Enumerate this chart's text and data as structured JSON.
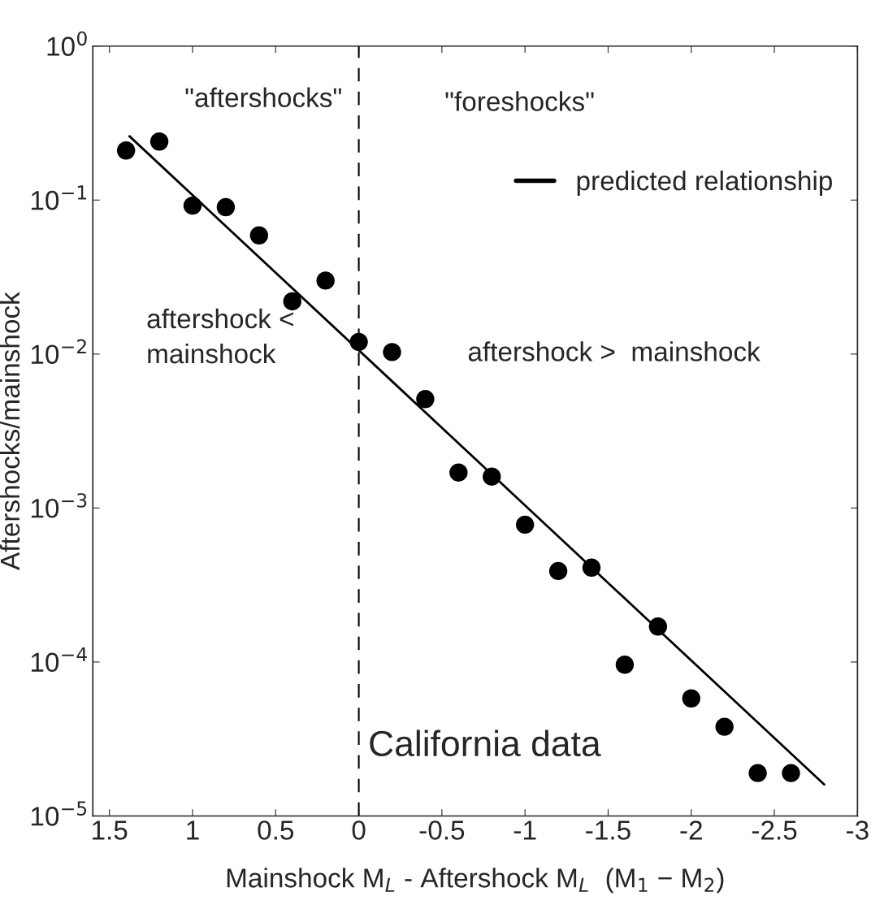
{
  "chart_data": {
    "type": "scatter",
    "xlabel": "Mainshock M$_{L}$ - Aftershock M$_{L}$  (M$_{1}$ − M$_{2}$)",
    "ylabel": "Aftershocks/mainshock",
    "x": [
      1.4,
      1.2,
      1.0,
      0.8,
      0.6,
      0.4,
      0.2,
      0.0,
      -0.2,
      -0.4,
      -0.6,
      -0.8,
      -1.0,
      -1.2,
      -1.4,
      -1.6,
      -1.8,
      -2.0,
      -2.2,
      -2.4,
      -2.6
    ],
    "series": [
      {
        "color": "#000000",
        "marker": "circle",
        "values": [
          0.21,
          0.24,
          0.092,
          0.09,
          0.059,
          0.022,
          0.03,
          0.012,
          0.0103,
          0.0051,
          0.0017,
          0.0016,
          0.00078,
          0.00039,
          0.00041,
          9.6e-05,
          0.00017,
          5.8e-05,
          3.8e-05,
          1.9e-05,
          1.9e-05
        ]
      },
      {
        "type": "line",
        "name": "predicted relationship",
        "color": "#000000",
        "marker": "none",
        "line_style": "solid",
        "x": [
          1.38,
          -2.8
        ],
        "values": [
          0.26,
          1.6e-05
        ]
      }
    ],
    "log": "y",
    "xlim": [
      1.6,
      -3
    ],
    "xticks": [
      1.5,
      1,
      0.5,
      0,
      -0.5,
      -1,
      -1.5,
      -2,
      -2.5,
      -3
    ],
    "ylim": [
      1e-05,
      1
    ],
    "yticks": [
      {
        "value": 1e-05,
        "label": "10$^{−5}$"
      },
      {
        "value": 0.0001,
        "label": "10$^{−4}$"
      },
      {
        "value": 0.001,
        "label": "10$^{−3}$"
      },
      {
        "value": 0.01,
        "label": "10$^{−2}$"
      },
      {
        "value": 0.1,
        "label": "10$^{−1}$"
      },
      {
        "value": 1,
        "label": "10$^{0}$"
      }
    ],
    "ref_lines": [
      {
        "axis": "x",
        "value": 0,
        "color": "#000000",
        "line_style": "dashed"
      }
    ],
    "annotations": [
      "\"aftershocks\"",
      "\"foreshocks\"",
      "aftershock <\nmainshock",
      "aftershock >  mainshock",
      "California data"
    ],
    "legend": "top right",
    "grid": false
  }
}
